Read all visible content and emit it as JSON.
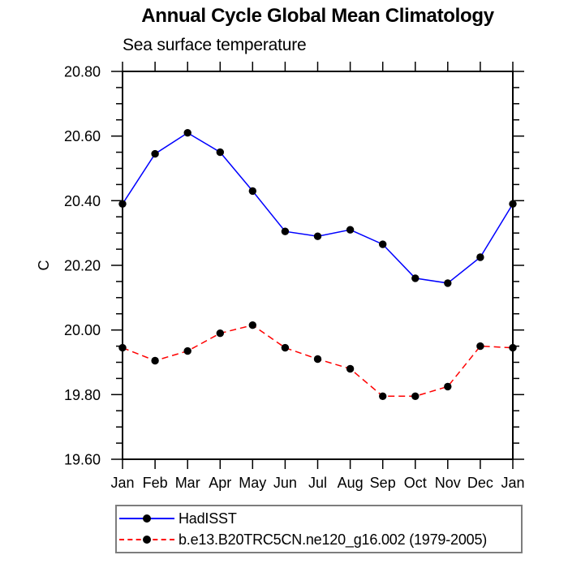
{
  "header": {
    "title": "Annual Cycle Global Mean Climatology",
    "subtitle": "Sea surface temperature"
  },
  "chart_data": {
    "type": "line",
    "title": "Annual Cycle Global Mean Climatology",
    "subtitle": "Sea surface temperature",
    "xlabel": "",
    "ylabel": "C",
    "x_categories": [
      "Jan",
      "Feb",
      "Mar",
      "Apr",
      "May",
      "Jun",
      "Jul",
      "Aug",
      "Sep",
      "Oct",
      "Nov",
      "Dec",
      "Jan"
    ],
    "ylim": [
      19.6,
      20.8
    ],
    "ytick_labels": [
      "19.60",
      "19.80",
      "20.00",
      "20.20",
      "20.40",
      "20.60",
      "20.80"
    ],
    "y_major_step": 0.2,
    "y_minor_step": 0.05,
    "grid": false,
    "legend_position": "bottom-left",
    "marker": "filled-black-circle",
    "series": [
      {
        "name": "HadISST",
        "color": "#0000ff",
        "line_style": "solid",
        "values": [
          20.39,
          20.545,
          20.61,
          20.55,
          20.43,
          20.305,
          20.29,
          20.31,
          20.265,
          20.16,
          20.145,
          20.225,
          20.39
        ]
      },
      {
        "name": "b.e13.B20TRC5CN.ne120_g16.002 (1979-2005)",
        "color": "#ff0000",
        "line_style": "dashed",
        "values": [
          19.945,
          19.905,
          19.935,
          19.99,
          20.015,
          19.945,
          19.91,
          19.88,
          19.795,
          19.795,
          19.825,
          19.95,
          19.945
        ]
      }
    ]
  }
}
